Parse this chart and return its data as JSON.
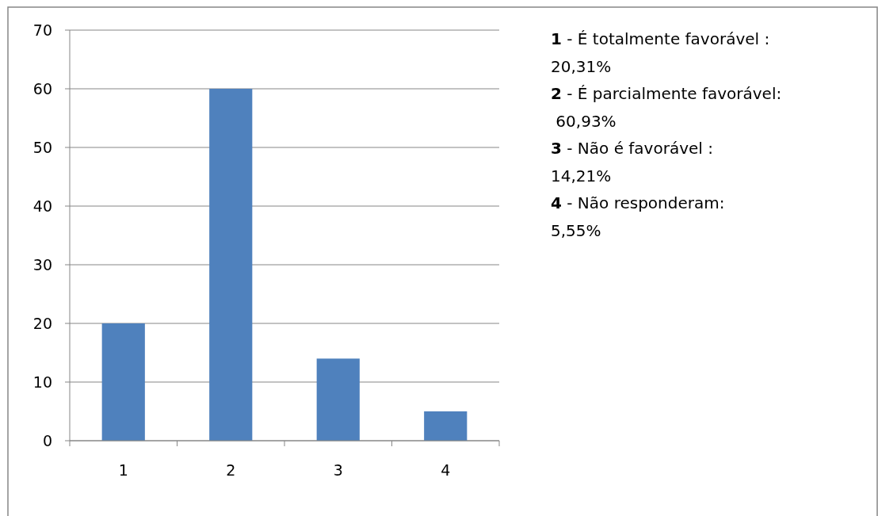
{
  "chart_data": {
    "type": "bar",
    "categories": [
      "1",
      "2",
      "3",
      "4"
    ],
    "values": [
      20,
      60,
      14,
      5
    ],
    "color": "#4f81bd",
    "ylim": [
      0,
      70
    ],
    "yticks": [
      0,
      10,
      20,
      30,
      40,
      50,
      60,
      70
    ],
    "grid": "y",
    "annotations": [
      "1 - É totalmente favorável :\n20,31%",
      "2 - É parcialmente favorável:\n 60,93%",
      "3 - Não é favorável :\n14,21%",
      "4 - Não responderam:\n5,55%"
    ]
  }
}
